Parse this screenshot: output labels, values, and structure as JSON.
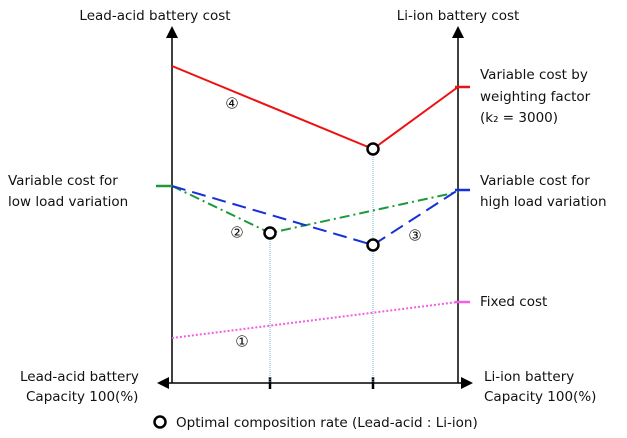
{
  "axes": {
    "left_title": "Lead-acid battery cost",
    "right_title": "Li-ion battery cost",
    "left_bottom": [
      "Lead-acid battery",
      "Capacity 100(%)"
    ],
    "right_bottom": [
      "Li-ion battery",
      "Capacity 100(%)"
    ]
  },
  "curves": {
    "weighting": {
      "label": [
        "Variable cost by",
        "weighting factor",
        "(k₂ = 3000)"
      ],
      "marker": "④"
    },
    "low_load": {
      "label": [
        "Variable cost for",
        "low load variation"
      ],
      "marker": "②"
    },
    "high_load": {
      "label": [
        "Variable cost for",
        "high load variation"
      ],
      "marker": "③"
    },
    "fixed": {
      "label": [
        "Fixed cost"
      ],
      "marker": "①"
    }
  },
  "legend": "Optimal composition rate (Lead-acid : Li-ion)"
}
